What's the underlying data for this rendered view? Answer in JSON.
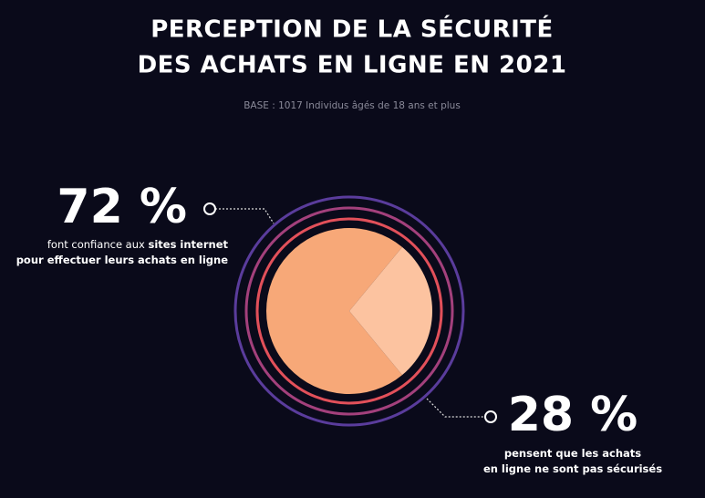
{
  "chart_data": {
    "type": "pie",
    "title": [
      "PERCEPTION DE LA SÉCURITÉ",
      "DES ACHATS EN LIGNE EN 2021"
    ],
    "subtitle": "BASE : 1017 Individus âgés de 18 ans et plus",
    "values": [
      72,
      28
    ],
    "value_labels": [
      "72 %",
      "28 %"
    ],
    "colors": [
      "#f7a878",
      "#fcc3a0"
    ],
    "descriptions": [
      [
        [
          {
            "text": "font confiance aux "
          },
          {
            "text": "sites internet",
            "bold": true
          }
        ],
        [
          {
            "text": "pour effectuer leurs achats en ligne",
            "bold": true
          }
        ]
      ],
      [
        [
          {
            "text": "pensent que les achats",
            "bold": true
          }
        ],
        [
          {
            "text": "en ligne ne sont pas sécurisés",
            "bold": true
          }
        ]
      ]
    ]
  }
}
